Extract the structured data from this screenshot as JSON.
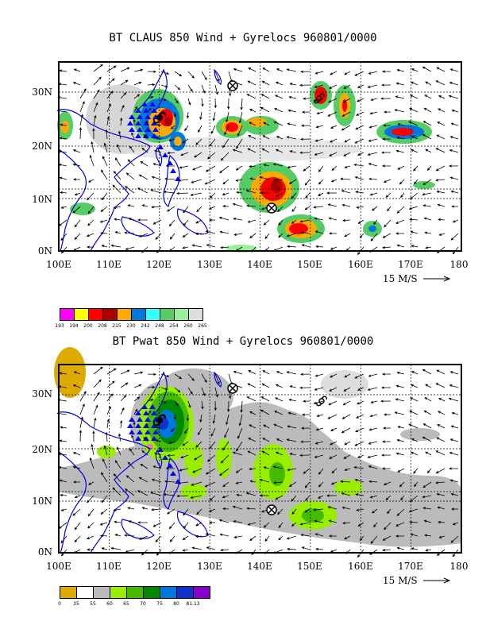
{
  "panels": [
    {
      "title": "BT CLAUS 850 Wind + Gyrelocs 960801/0000",
      "lat_labels": [
        "30N",
        "20N",
        "10N",
        "0N"
      ],
      "lon_labels": [
        "100E",
        "110E",
        "120E",
        "130E",
        "140E",
        "150E",
        "160E",
        "170E",
        "180"
      ],
      "ref_vector_label": "15 M/S",
      "colorbar": {
        "colors": [
          "#ff00ff",
          "#ffff00",
          "#ff0000",
          "#aa0000",
          "#ffaa00",
          "#0077dd",
          "#33ffff",
          "#55cc66",
          "#99ee99",
          "#dddddd"
        ],
        "labels": [
          "193",
          "194",
          "200",
          "208",
          "215",
          "230",
          "242",
          "248",
          "254",
          "260",
          "265"
        ]
      }
    },
    {
      "title": "BT Pwat 850 Wind + Gyrelocs 960801/0000",
      "lat_labels": [
        "30N",
        "20N",
        "10N",
        "0N"
      ],
      "lon_labels": [
        "100E",
        "110E",
        "120E",
        "130E",
        "140E",
        "150E",
        "160E",
        "170E",
        "180"
      ],
      "ref_vector_label": "15 M/S",
      "colorbar": {
        "colors": [
          "#ddaa00",
          "#ffffff",
          "#bbbbbb",
          "#99ee00",
          "#44bb00",
          "#008800",
          "#0077dd",
          "#1133cc",
          "#8800cc"
        ],
        "labels": [
          "0",
          "35",
          "55",
          "60",
          "65",
          "70",
          "75",
          "80",
          "81.13"
        ]
      }
    }
  ]
}
